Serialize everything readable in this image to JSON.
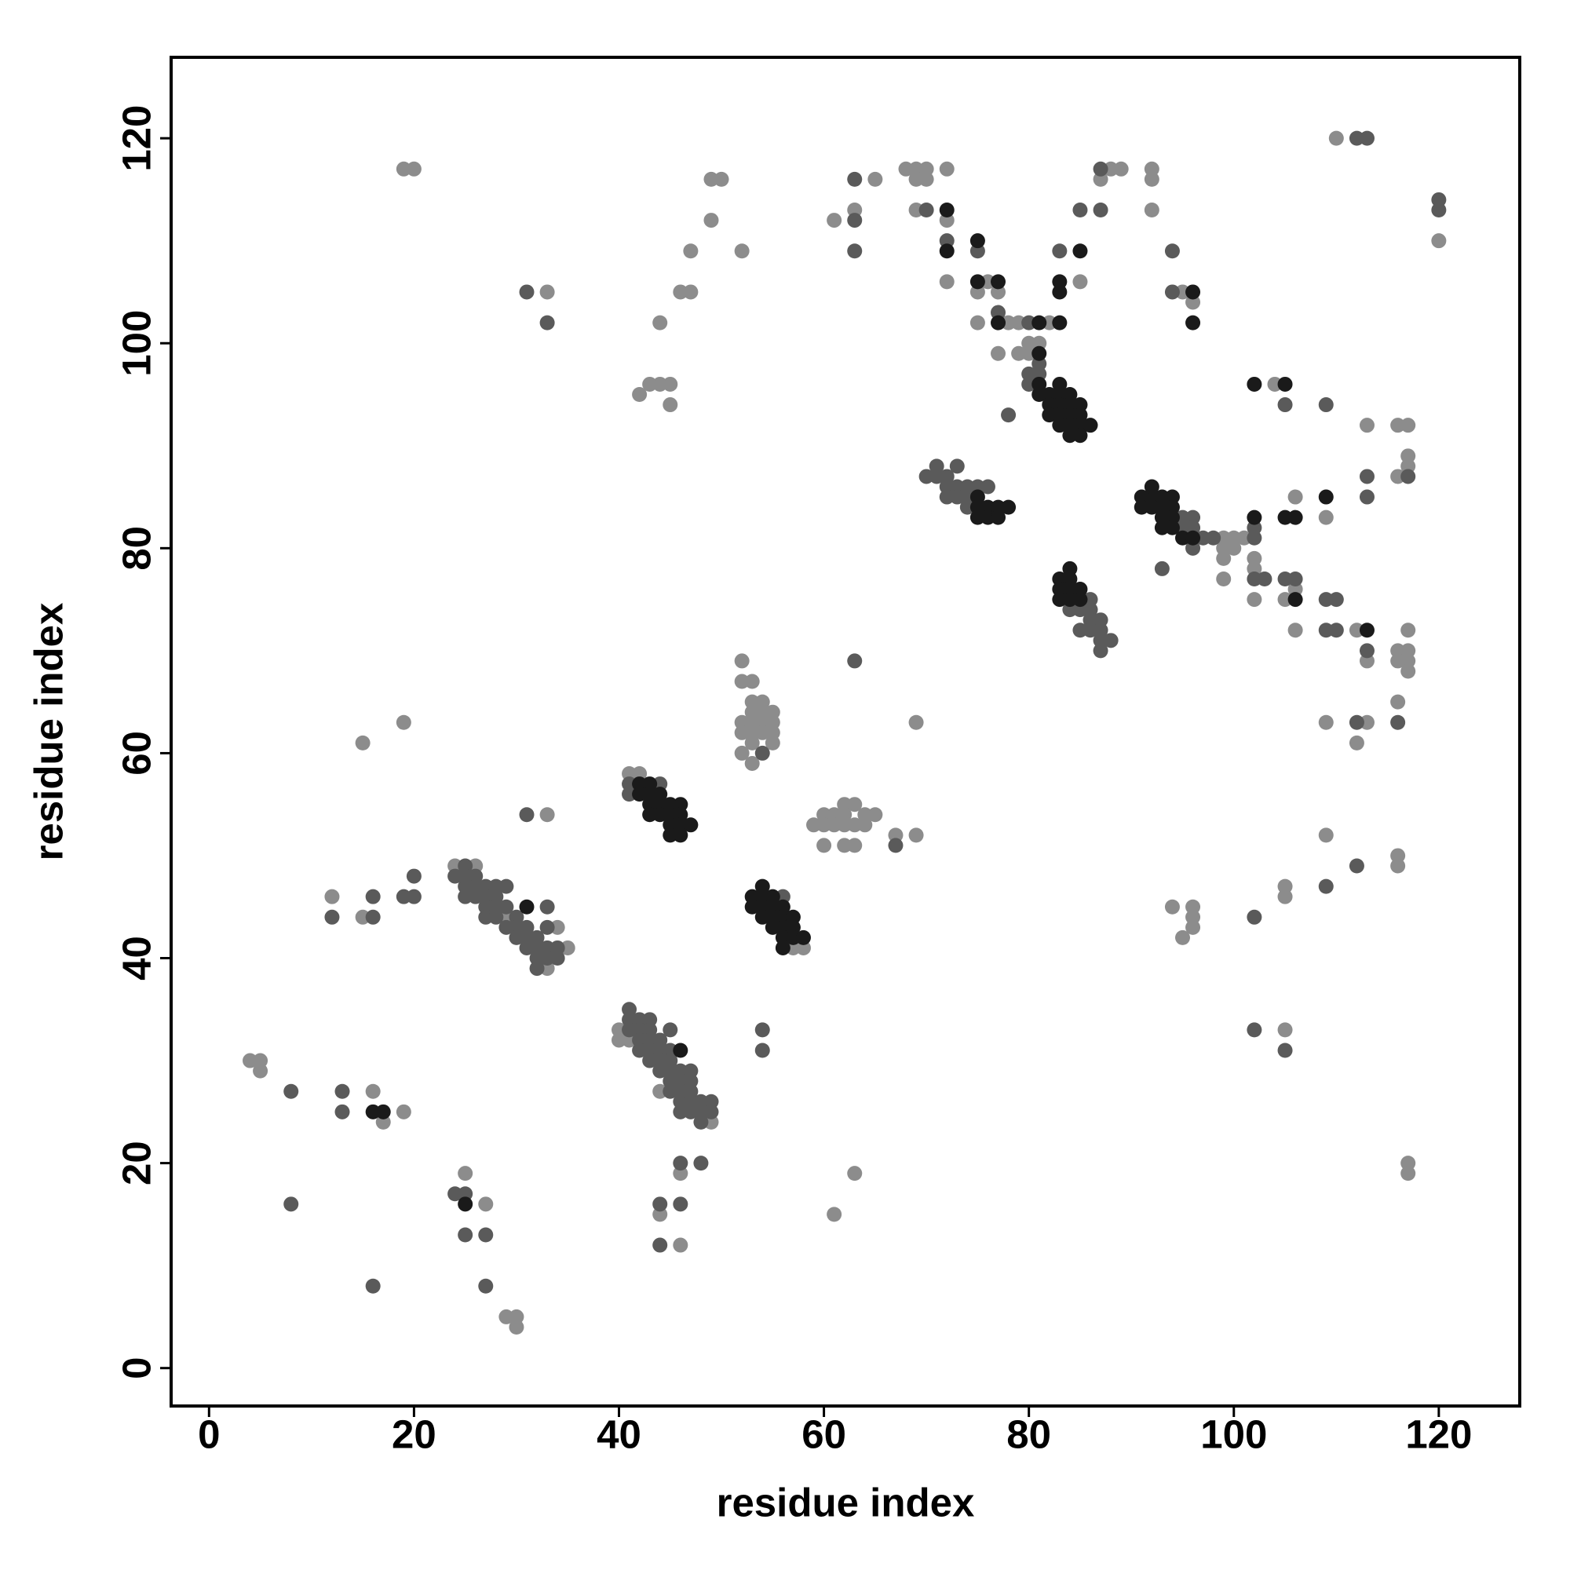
{
  "chart_data": {
    "type": "scatter",
    "x_label": "residue index",
    "y_label": "residue index",
    "xlim": [
      -3.7,
      127.9
    ],
    "ylim": [
      -3.7,
      127.9
    ],
    "xticks": [
      0,
      20,
      40,
      60,
      80,
      100,
      120
    ],
    "yticks": [
      0,
      20,
      40,
      60,
      80,
      100,
      120
    ],
    "series": [
      {
        "color": "#8c8c8c",
        "x": [
          4,
          5,
          5,
          16,
          17,
          19,
          25,
          27,
          29,
          30,
          30,
          12,
          15,
          15,
          19,
          19,
          20,
          33,
          33,
          24,
          26,
          34,
          33,
          35,
          29,
          40,
          40,
          41,
          49,
          44,
          44,
          46,
          46,
          42,
          41,
          58,
          57,
          52,
          52,
          53,
          52,
          53,
          54,
          55,
          52,
          53,
          54,
          55,
          53,
          55,
          52,
          53,
          53,
          54,
          53,
          54,
          55,
          60,
          61,
          62,
          63,
          60,
          61,
          62,
          63,
          59,
          62,
          64,
          65,
          60,
          62,
          63,
          64,
          67,
          69,
          61,
          63,
          69,
          42,
          43,
          44,
          45,
          45,
          44,
          46,
          47,
          47,
          49,
          49,
          50,
          52,
          61,
          63,
          65,
          68,
          69,
          70,
          69,
          70,
          72,
          69,
          72,
          72,
          76,
          75,
          75,
          77,
          78,
          77,
          79,
          82,
          79,
          80,
          80,
          81,
          85,
          88,
          89,
          87,
          92,
          92,
          92,
          95,
          96,
          110,
          120,
          99,
          100,
          101,
          99,
          100,
          99,
          99,
          102,
          102,
          102,
          104,
          106,
          109,
          106,
          105,
          106,
          112,
          113,
          113,
          116,
          117,
          117,
          117,
          116,
          116,
          117,
          116,
          117,
          117,
          117,
          109,
          113,
          112,
          116,
          109,
          116,
          116,
          105,
          105,
          94,
          96,
          96,
          96,
          95,
          105,
          117,
          117
        ],
        "values": [
          30,
          30,
          29,
          27,
          24,
          25,
          19,
          16,
          5,
          5,
          4,
          46,
          44,
          61,
          63,
          117,
          117,
          54,
          105,
          49,
          49,
          43,
          39,
          41,
          44,
          33,
          32,
          32,
          24,
          27,
          15,
          19,
          12,
          58,
          58,
          41,
          41,
          69,
          67,
          67,
          63,
          63,
          63,
          63,
          62,
          62,
          62,
          62,
          61,
          61,
          60,
          59,
          65,
          65,
          64,
          64,
          64,
          54,
          54,
          55,
          55,
          53,
          53,
          53,
          53,
          53,
          54,
          54,
          54,
          51,
          51,
          51,
          53,
          52,
          52,
          15,
          19,
          63,
          95,
          96,
          96,
          96,
          94,
          102,
          105,
          105,
          109,
          112,
          116,
          116,
          109,
          112,
          113,
          116,
          117,
          117,
          117,
          116,
          116,
          117,
          113,
          112,
          106,
          106,
          105,
          102,
          105,
          102,
          99,
          102,
          102,
          99,
          99,
          100,
          100,
          106,
          117,
          117,
          116,
          117,
          116,
          113,
          105,
          104,
          120,
          110,
          81,
          81,
          81,
          80,
          80,
          79,
          77,
          79,
          78,
          75,
          96,
          85,
          83,
          76,
          75,
          72,
          72,
          92,
          69,
          92,
          92,
          89,
          88,
          87,
          70,
          70,
          69,
          69,
          68,
          72,
          63,
          63,
          61,
          65,
          52,
          50,
          49,
          47,
          46,
          45,
          45,
          44,
          43,
          42,
          33,
          20,
          19
        ]
      },
      {
        "color": "#5a5a5a",
        "x": [
          8,
          8,
          13,
          13,
          16,
          24,
          25,
          25,
          27,
          27,
          12,
          16,
          16,
          19,
          20,
          20,
          31,
          31,
          33,
          25,
          24,
          25,
          26,
          25,
          26,
          27,
          25,
          26,
          27,
          28,
          27,
          28,
          29,
          27,
          28,
          30,
          29,
          30,
          31,
          30,
          31,
          32,
          31,
          32,
          33,
          32,
          33,
          34,
          32,
          34,
          33,
          33,
          28,
          29,
          41,
          41,
          41,
          42,
          42,
          42,
          42,
          43,
          43,
          43,
          43,
          43,
          44,
          44,
          44,
          44,
          45,
          45,
          45,
          45,
          45,
          46,
          46,
          46,
          46,
          46,
          47,
          47,
          47,
          47,
          47,
          48,
          48,
          48,
          49,
          49,
          45,
          44,
          46,
          46,
          48,
          44,
          54,
          54,
          44,
          41,
          41,
          54,
          63,
          63,
          63,
          63,
          67,
          70,
          72,
          75,
          77,
          80,
          81,
          80,
          81,
          80,
          78,
          83,
          85,
          87,
          87,
          94,
          94,
          112,
          113,
          120,
          120,
          70,
          71,
          71,
          72,
          73,
          72,
          73,
          74,
          72,
          73,
          74,
          75,
          76,
          74,
          93,
          98,
          102,
          102,
          102,
          103,
          105,
          109,
          105,
          106,
          109,
          110,
          109,
          110,
          113,
          113,
          113,
          117,
          112,
          116,
          112,
          109,
          102,
          102,
          105,
          86,
          85,
          86,
          86,
          87,
          85,
          86,
          87,
          87,
          88,
          87,
          84,
          95,
          96,
          95,
          96,
          97,
          96,
          56
        ],
        "values": [
          27,
          16,
          27,
          25,
          8,
          17,
          17,
          13,
          13,
          8,
          44,
          44,
          46,
          46,
          46,
          48,
          54,
          105,
          102,
          49,
          48,
          48,
          48,
          47,
          47,
          47,
          46,
          46,
          46,
          46,
          45,
          45,
          45,
          44,
          44,
          44,
          43,
          43,
          43,
          42,
          42,
          42,
          41,
          41,
          41,
          40,
          40,
          40,
          39,
          41,
          43,
          45,
          47,
          47,
          35,
          34,
          33,
          34,
          33,
          32,
          31,
          34,
          33,
          32,
          31,
          30,
          32,
          31,
          30,
          29,
          31,
          30,
          29,
          28,
          27,
          29,
          28,
          27,
          26,
          25,
          29,
          28,
          27,
          26,
          25,
          26,
          25,
          24,
          26,
          25,
          33,
          16,
          16,
          20,
          20,
          12,
          33,
          31,
          57,
          57,
          56,
          60,
          112,
          116,
          109,
          69,
          51,
          113,
          110,
          109,
          103,
          102,
          98,
          97,
          97,
          96,
          93,
          109,
          113,
          113,
          117,
          109,
          105,
          120,
          120,
          114,
          113,
          87,
          88,
          87,
          87,
          88,
          86,
          86,
          86,
          85,
          85,
          85,
          86,
          86,
          84,
          78,
          81,
          81,
          82,
          77,
          77,
          94,
          94,
          77,
          77,
          75,
          75,
          72,
          72,
          87,
          85,
          70,
          87,
          63,
          63,
          49,
          47,
          44,
          33,
          31,
          75,
          74,
          74,
          73,
          73,
          72,
          72,
          72,
          71,
          71,
          70,
          74,
          83,
          83,
          82,
          82,
          81,
          80,
          46
        ]
      },
      {
        "color": "#1a1a1a",
        "x": [
          16,
          17,
          25,
          31,
          46,
          43,
          42,
          42,
          43,
          44,
          43,
          44,
          45,
          46,
          43,
          44,
          45,
          46,
          45,
          46,
          47,
          45,
          46,
          53,
          54,
          55,
          53,
          54,
          55,
          56,
          54,
          54,
          55,
          56,
          57,
          55,
          56,
          57,
          56,
          57,
          58,
          56,
          72,
          72,
          75,
          75,
          77,
          77,
          81,
          83,
          81,
          81,
          83,
          81,
          82,
          83,
          84,
          82,
          83,
          84,
          85,
          82,
          83,
          84,
          85,
          83,
          84,
          85,
          86,
          84,
          85,
          83,
          83,
          85,
          96,
          96,
          75,
          75,
          76,
          77,
          78,
          75,
          76,
          77,
          91,
          92,
          93,
          94,
          91,
          92,
          93,
          94,
          92,
          93,
          94,
          93,
          94,
          95,
          96,
          102,
          83,
          84,
          84,
          83,
          84,
          85,
          83,
          84,
          85,
          102,
          105,
          105,
          106,
          109,
          106,
          113
        ],
        "values": [
          25,
          25,
          16,
          45,
          31,
          57,
          57,
          56,
          56,
          56,
          55,
          55,
          55,
          55,
          54,
          54,
          54,
          54,
          53,
          53,
          53,
          52,
          52,
          46,
          46,
          46,
          45,
          45,
          45,
          45,
          47,
          44,
          44,
          44,
          44,
          43,
          43,
          43,
          42,
          42,
          42,
          41,
          113,
          109,
          110,
          106,
          106,
          102,
          102,
          102,
          99,
          96,
          96,
          95,
          95,
          95,
          95,
          94,
          94,
          94,
          94,
          93,
          93,
          93,
          93,
          92,
          92,
          92,
          92,
          91,
          91,
          106,
          105,
          109,
          105,
          102,
          85,
          84,
          84,
          84,
          84,
          83,
          83,
          83,
          85,
          85,
          85,
          85,
          84,
          84,
          84,
          84,
          86,
          83,
          83,
          82,
          82,
          81,
          81,
          83,
          77,
          77,
          78,
          76,
          76,
          76,
          75,
          75,
          75,
          96,
          96,
          83,
          83,
          85,
          75,
          72
        ]
      }
    ]
  }
}
